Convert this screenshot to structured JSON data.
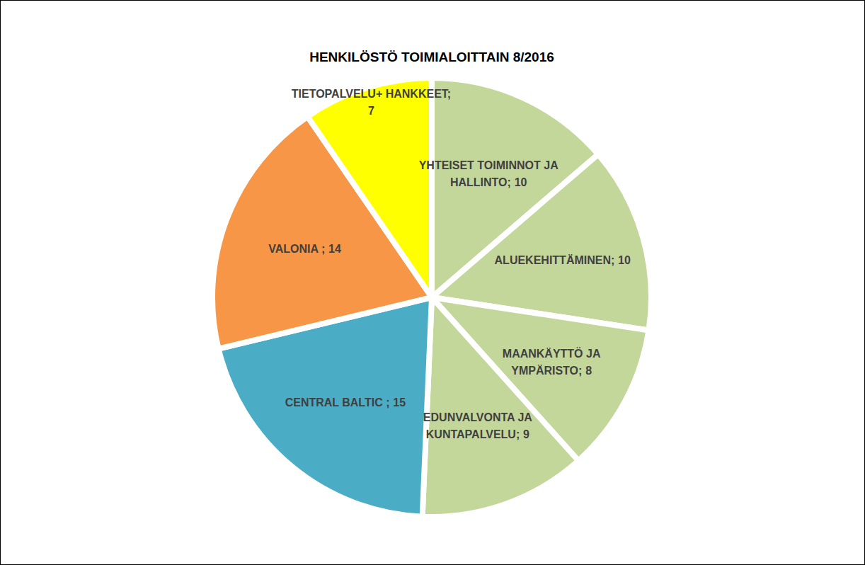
{
  "chart_data": {
    "type": "pie",
    "title": "HENKILÖSTÖ TOIMIALOITTAIN  8/2016",
    "categories": [
      "YHTEISET TOIMINNOT JA HALLINTO;",
      "ALUEKEHITTÄMINEN;",
      "MAANKÄYTTÖ JA YMPÄRISTO;",
      "EDUNVALVONTA JA KUNTAPALVELU;",
      "CENTRAL BALTIC ;",
      "VALONIA ;",
      "TIETOPALVELU+ HANKKEET;"
    ],
    "values": [
      10,
      10,
      8,
      9,
      15,
      14,
      7
    ],
    "colors": [
      "#c4d79b",
      "#c4d79b",
      "#c4d79b",
      "#c4d79b",
      "#4bacc6",
      "#f79646",
      "#ffff00"
    ],
    "data_labels": true
  }
}
